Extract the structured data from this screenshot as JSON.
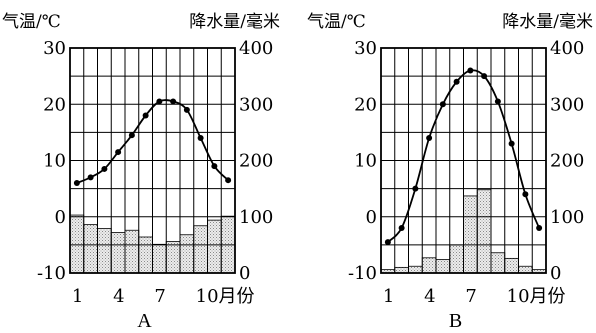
{
  "chart_data": [
    {
      "type": "bar",
      "panel_label": "A",
      "left_axis_label": "气温/℃",
      "right_axis_label": "降水量/毫米",
      "x_axis_ticks": [
        "1",
        "4",
        "7",
        "10月份"
      ],
      "months": [
        1,
        2,
        3,
        4,
        5,
        6,
        7,
        8,
        9,
        10,
        11,
        12
      ],
      "temp_ylim": [
        -10,
        30
      ],
      "precip_ylim": [
        0,
        400
      ],
      "temp_ticks": [
        "30",
        "20",
        "10",
        "0",
        "-10"
      ],
      "precip_ticks": [
        "400",
        "300",
        "200",
        "100",
        "0"
      ],
      "series": [
        {
          "kind": "line",
          "values": [
            6,
            7,
            8.5,
            11.5,
            14.5,
            18,
            20.5,
            20.5,
            19,
            14,
            9,
            6.5
          ]
        },
        {
          "kind": "bar",
          "values": [
            103,
            86,
            79,
            72,
            76,
            64,
            51,
            56,
            68,
            84,
            94,
            101
          ]
        }
      ]
    },
    {
      "type": "bar",
      "panel_label": "B",
      "left_axis_label": "气温/℃",
      "right_axis_label": "降水量/毫米",
      "x_axis_ticks": [
        "1",
        "4",
        "7",
        "10月份"
      ],
      "months": [
        1,
        2,
        3,
        4,
        5,
        6,
        7,
        8,
        9,
        10,
        11,
        12
      ],
      "temp_ylim": [
        -10,
        30
      ],
      "precip_ylim": [
        0,
        400
      ],
      "temp_ticks": [
        "30",
        "20",
        "10",
        "0",
        "-10"
      ],
      "precip_ticks": [
        "400",
        "300",
        "200",
        "100",
        "0"
      ],
      "series": [
        {
          "kind": "line",
          "values": [
            -4.5,
            -2,
            5,
            14,
            20,
            24,
            26,
            25,
            20.5,
            13,
            4,
            -2
          ]
        },
        {
          "kind": "bar",
          "values": [
            6,
            10,
            12,
            27,
            24,
            50,
            137,
            148,
            36,
            26,
            12,
            6
          ]
        }
      ]
    }
  ]
}
